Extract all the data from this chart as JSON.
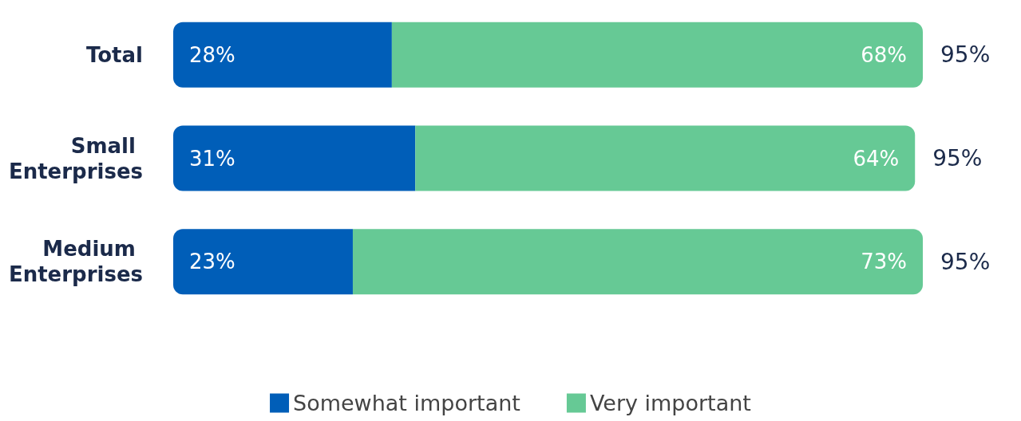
{
  "chart_data": {
    "type": "bar",
    "orientation": "horizontal",
    "stacked": true,
    "categories": [
      "Total",
      "Small Enterprises",
      "Medium Enterprises"
    ],
    "series": [
      {
        "name": "Somewhat important",
        "color": "#005eb8",
        "values": [
          28,
          31,
          23
        ],
        "value_labels": [
          "28%",
          "31%",
          "23%"
        ]
      },
      {
        "name": "Very important",
        "color": "#66c995",
        "values": [
          68,
          64,
          73
        ],
        "value_labels": [
          "68%",
          "64%",
          "73%"
        ]
      }
    ],
    "totals": [
      "95%",
      "95%",
      "95%"
    ],
    "legend": "bottom"
  }
}
